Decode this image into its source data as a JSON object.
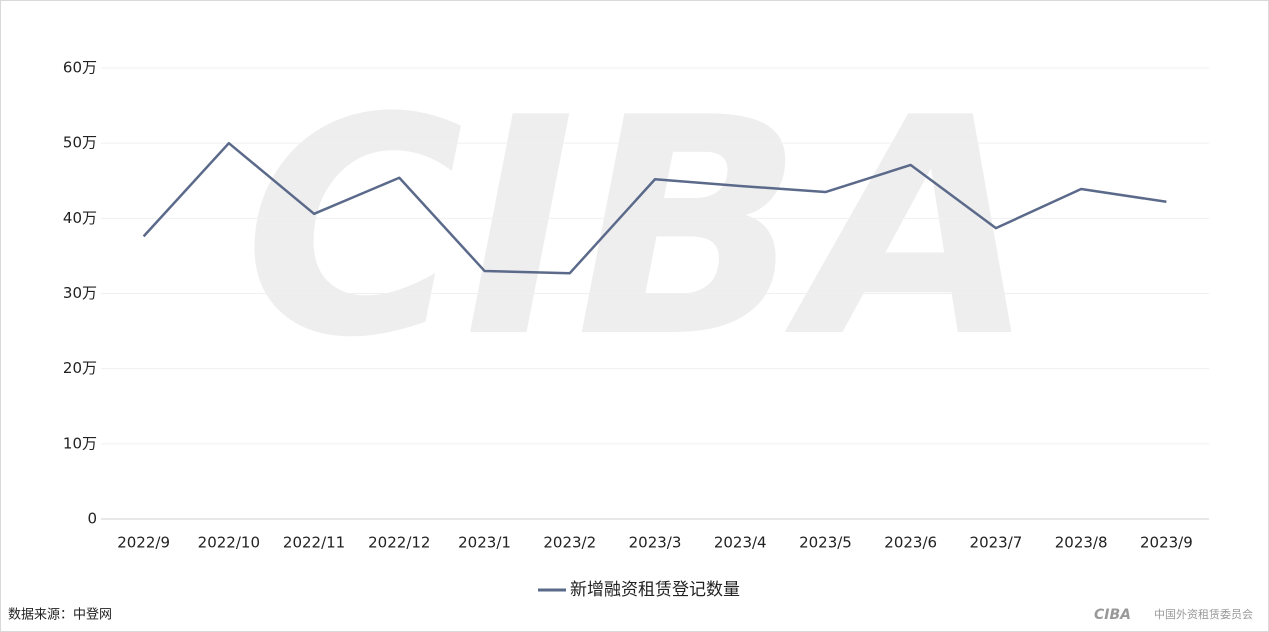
{
  "chart_data": {
    "type": "line",
    "watermark": "CIBA",
    "categories": [
      "2022/9",
      "2022/10",
      "2022/11",
      "2022/12",
      "2023/1",
      "2023/2",
      "2023/3",
      "2023/4",
      "2023/5",
      "2023/6",
      "2023/7",
      "2023/8",
      "2023/9"
    ],
    "series": [
      {
        "name": "新增融资租赁登记数量",
        "color": "#5b6a8a",
        "values": [
          37.6,
          50.0,
          40.6,
          45.4,
          33.0,
          32.7,
          45.2,
          44.3,
          43.5,
          47.1,
          38.7,
          43.9,
          42.2
        ]
      }
    ],
    "ylim": [
      0,
      60
    ],
    "yticks": [
      0,
      {
        "value": 10,
        "label": "10万"
      },
      {
        "value": 20,
        "label": "20万"
      },
      {
        "value": 30,
        "label": "30万"
      },
      {
        "value": 40,
        "label": "40万"
      },
      {
        "value": 50,
        "label": "50万"
      },
      {
        "value": 60,
        "label": "60万"
      }
    ],
    "grid": true,
    "legend": "bottom",
    "source": "数据来源：中登网",
    "logo": {
      "mark": "CIBA",
      "text": "中国外资租赁委员会"
    }
  }
}
